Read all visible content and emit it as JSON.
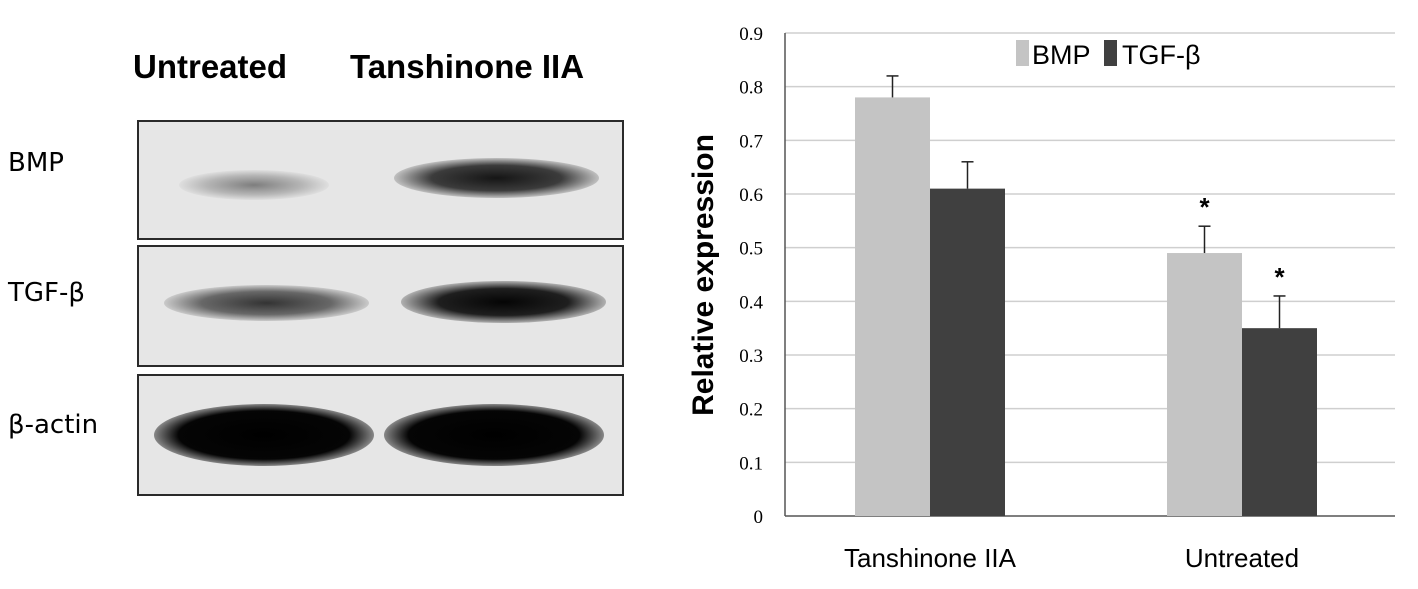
{
  "blot": {
    "column_labels": [
      "Untreated",
      "Tanshinone IIA"
    ],
    "row_labels": [
      "BMP",
      "TGF-β",
      "β-actin"
    ]
  },
  "chart_data": {
    "type": "bar",
    "categories": [
      "Tanshinone IIA",
      "Untreated"
    ],
    "series": [
      {
        "name": "BMP",
        "values": [
          0.78,
          0.49
        ],
        "errors": [
          0.04,
          0.05
        ],
        "color": "#c4c4c4"
      },
      {
        "name": "TGF-β",
        "values": [
          0.61,
          0.35
        ],
        "errors": [
          0.05,
          0.06
        ],
        "color": "#404040"
      }
    ],
    "significance": [
      {
        "label": "*",
        "category": 1,
        "series": 0
      },
      {
        "label": "*",
        "category": 1,
        "series": 1
      }
    ],
    "title": "",
    "xlabel": "",
    "ylabel": "Relative expression",
    "ylim": [
      0,
      0.9
    ],
    "yticks": [
      "0",
      "0.1",
      "0.2",
      "0.3",
      "0.4",
      "0.5",
      "0.6",
      "0.7",
      "0.8",
      "0.9"
    ],
    "grid": true,
    "legend": "top"
  }
}
